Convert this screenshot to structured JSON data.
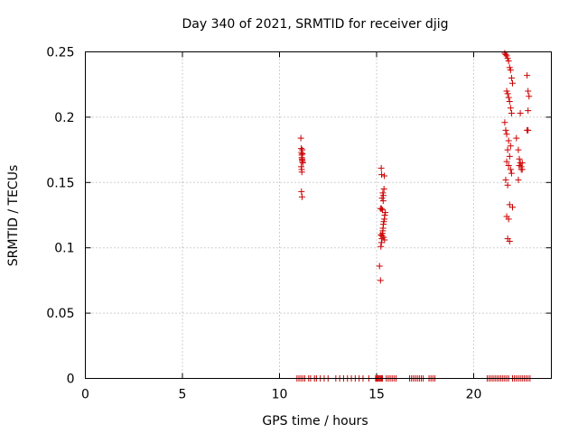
{
  "chart_data": {
    "type": "scatter",
    "title": "Day 340 of 2021, SRMTID for receiver djig",
    "xlabel": "GPS time / hours",
    "ylabel": "SRMTID / TECUs",
    "xlim": [
      0,
      24
    ],
    "ylim": [
      0,
      0.25
    ],
    "xticks": [
      0,
      5,
      10,
      15,
      20
    ],
    "yticks": [
      0,
      0.05,
      0.1,
      0.15,
      0.2,
      0.25
    ],
    "xtick_labels": [
      "0",
      "5",
      "10",
      "15",
      "20"
    ],
    "ytick_labels": [
      "0",
      "0.05",
      "0.1",
      "0.15",
      "0.2",
      "0.25"
    ],
    "grid": true,
    "legend": "none",
    "marker": "plus",
    "color": "#cc0000",
    "series": [
      {
        "values_x": [
          11.1,
          11.12,
          11.13,
          11.14,
          11.15,
          11.16,
          11.17,
          11.18,
          11.12,
          11.14,
          11.15,
          11.13,
          11.16,
          11.18,
          11.2,
          11.17,
          15.15,
          15.2,
          15.22,
          15.25,
          15.27,
          15.28,
          15.3,
          15.32,
          15.33,
          15.35,
          15.37,
          15.4,
          15.42,
          15.45,
          15.2,
          15.25,
          15.3,
          15.35,
          15.28,
          15.32,
          15.38,
          15.4,
          15.24,
          15.26,
          15.36,
          15.41,
          15.22,
          15.34,
          21.6,
          21.65,
          21.7,
          21.75,
          21.8,
          21.85,
          21.9,
          21.95,
          22.0,
          21.7,
          21.75,
          21.8,
          21.85,
          21.9,
          21.95,
          21.6,
          21.65,
          21.7,
          21.8,
          21.9,
          21.75,
          21.85,
          21.7,
          21.8,
          21.9,
          21.95,
          21.65,
          21.75,
          21.85,
          22.0,
          22.2,
          22.3,
          22.35,
          22.4,
          22.45,
          22.5,
          22.3,
          22.4,
          22.45,
          22.35,
          22.5,
          22.75,
          22.8,
          22.85,
          22.8,
          22.75,
          22.8,
          21.7,
          21.8,
          21.75,
          21.85
        ],
        "values_y": [
          0.184,
          0.176,
          0.173,
          0.171,
          0.169,
          0.168,
          0.167,
          0.166,
          0.162,
          0.16,
          0.158,
          0.143,
          0.139,
          0.172,
          0.165,
          0.175,
          0.086,
          0.075,
          0.101,
          0.104,
          0.107,
          0.109,
          0.111,
          0.113,
          0.115,
          0.118,
          0.12,
          0.122,
          0.125,
          0.127,
          0.13,
          0.13,
          0.129,
          0.14,
          0.138,
          0.142,
          0.145,
          0.155,
          0.161,
          0.156,
          0.108,
          0.106,
          0.11,
          0.136,
          0.249,
          0.248,
          0.247,
          0.245,
          0.243,
          0.238,
          0.236,
          0.23,
          0.226,
          0.22,
          0.218,
          0.215,
          0.212,
          0.207,
          0.203,
          0.196,
          0.19,
          0.187,
          0.182,
          0.178,
          0.175,
          0.17,
          0.166,
          0.163,
          0.16,
          0.157,
          0.152,
          0.148,
          0.133,
          0.131,
          0.184,
          0.175,
          0.168,
          0.165,
          0.162,
          0.16,
          0.152,
          0.203,
          0.16,
          0.163,
          0.165,
          0.232,
          0.22,
          0.216,
          0.205,
          0.19,
          0.19,
          0.124,
          0.122,
          0.107,
          0.105
        ]
      },
      {
        "values_x": [
          10.9,
          11.0,
          11.1,
          11.2,
          11.3,
          11.5,
          11.6,
          11.8,
          11.9,
          12.1,
          12.3,
          12.5,
          12.9,
          13.1,
          13.3,
          13.5,
          13.7,
          13.9,
          14.1,
          14.3,
          14.6,
          14.95,
          15.0,
          15.05,
          15.1,
          15.15,
          15.2,
          15.25,
          15.3,
          15.5,
          15.6,
          15.7,
          15.8,
          15.9,
          16.0,
          16.7,
          16.8,
          16.9,
          17.0,
          17.1,
          17.2,
          17.3,
          17.4,
          17.7,
          17.8,
          17.9,
          18.0,
          20.7,
          20.8,
          20.9,
          21.0,
          21.1,
          21.2,
          21.3,
          21.4,
          21.5,
          21.6,
          21.7,
          21.8,
          22.0,
          22.1,
          22.2,
          22.3,
          22.4,
          22.5,
          22.6,
          22.7,
          22.8,
          22.9
        ],
        "values_y": [
          0,
          0,
          0,
          0,
          0,
          0,
          0,
          0,
          0,
          0,
          0,
          0,
          0,
          0,
          0,
          0,
          0,
          0,
          0,
          0,
          0,
          0,
          0,
          0,
          0,
          0,
          0,
          0,
          0,
          0,
          0,
          0,
          0,
          0,
          0,
          0,
          0,
          0,
          0,
          0,
          0,
          0,
          0,
          0,
          0,
          0,
          0,
          0,
          0,
          0,
          0,
          0,
          0,
          0,
          0,
          0,
          0,
          0,
          0,
          0,
          0,
          0,
          0,
          0,
          0,
          0,
          0,
          0,
          0
        ]
      }
    ]
  }
}
